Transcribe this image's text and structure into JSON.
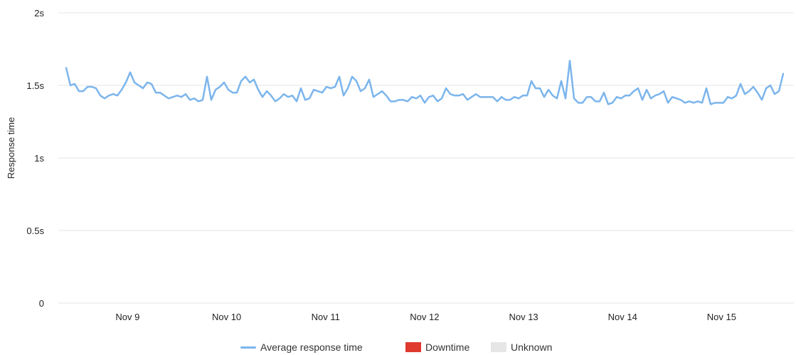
{
  "chart_data": {
    "type": "line",
    "title": "",
    "xlabel": "",
    "ylabel": "Response time",
    "y_ticks": [
      "0",
      "0.5s",
      "1s",
      "1.5s",
      "2s"
    ],
    "ylim": [
      0,
      2
    ],
    "x_tick_labels": [
      "Nov 9",
      "Nov 10",
      "Nov 11",
      "Nov 12",
      "Nov 13",
      "Nov 14",
      "Nov 15"
    ],
    "x_range_days": [
      8.3,
      15.73
    ],
    "grid": true,
    "legend_position": "bottom",
    "colors": {
      "line": "#7cb5ec",
      "downtime": "#e03a2f",
      "unknown": "#e6e6e6",
      "grid": "#e6e6e6"
    },
    "legend": [
      {
        "label": "Average response time",
        "kind": "line",
        "color": "#7cb5ec"
      },
      {
        "label": "Downtime",
        "kind": "swatch",
        "color": "#e03a2f"
      },
      {
        "label": "Unknown",
        "kind": "swatch",
        "color": "#e6e6e6"
      }
    ],
    "series": [
      {
        "name": "Average response time",
        "values": [
          1.62,
          1.5,
          1.51,
          1.46,
          1.46,
          1.49,
          1.49,
          1.48,
          1.43,
          1.41,
          1.43,
          1.44,
          1.43,
          1.47,
          1.52,
          1.59,
          1.52,
          1.5,
          1.48,
          1.52,
          1.51,
          1.45,
          1.45,
          1.43,
          1.41,
          1.42,
          1.43,
          1.42,
          1.44,
          1.4,
          1.41,
          1.39,
          1.4,
          1.56,
          1.4,
          1.47,
          1.49,
          1.52,
          1.47,
          1.45,
          1.45,
          1.53,
          1.56,
          1.52,
          1.54,
          1.47,
          1.42,
          1.46,
          1.43,
          1.39,
          1.41,
          1.44,
          1.42,
          1.43,
          1.39,
          1.48,
          1.4,
          1.41,
          1.47,
          1.46,
          1.45,
          1.49,
          1.48,
          1.49,
          1.56,
          1.43,
          1.48,
          1.56,
          1.53,
          1.46,
          1.48,
          1.54,
          1.42,
          1.44,
          1.46,
          1.43,
          1.39,
          1.39,
          1.4,
          1.4,
          1.39,
          1.42,
          1.41,
          1.43,
          1.38,
          1.42,
          1.43,
          1.39,
          1.41,
          1.48,
          1.44,
          1.43,
          1.43,
          1.44,
          1.4,
          1.42,
          1.44,
          1.42,
          1.42,
          1.42,
          1.42,
          1.39,
          1.42,
          1.4,
          1.4,
          1.42,
          1.41,
          1.43,
          1.43,
          1.53,
          1.48,
          1.48,
          1.42,
          1.47,
          1.43,
          1.41,
          1.53,
          1.41,
          1.67,
          1.41,
          1.38,
          1.38,
          1.42,
          1.42,
          1.39,
          1.39,
          1.45,
          1.37,
          1.38,
          1.42,
          1.41,
          1.43,
          1.43,
          1.46,
          1.48,
          1.4,
          1.47,
          1.41,
          1.43,
          1.44,
          1.46,
          1.38,
          1.42,
          1.41,
          1.4,
          1.38,
          1.39,
          1.38,
          1.39,
          1.38,
          1.48,
          1.37,
          1.38,
          1.38,
          1.38,
          1.42,
          1.41,
          1.43,
          1.51,
          1.44,
          1.46,
          1.49,
          1.45,
          1.4,
          1.48,
          1.5,
          1.44,
          1.46,
          1.58
        ]
      }
    ]
  }
}
